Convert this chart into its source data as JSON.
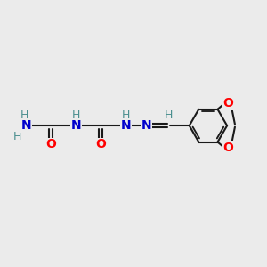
{
  "background_color": "#ebebeb",
  "atom_colors": {
    "N": "#0000cc",
    "O": "#ff0000",
    "H": "#4a8f8f"
  },
  "bond_color": "#1a1a1a",
  "bond_width": 1.5,
  "font_size_heavy": 10,
  "font_size_H": 9,
  "figsize": [
    3.0,
    3.0
  ],
  "dpi": 100
}
